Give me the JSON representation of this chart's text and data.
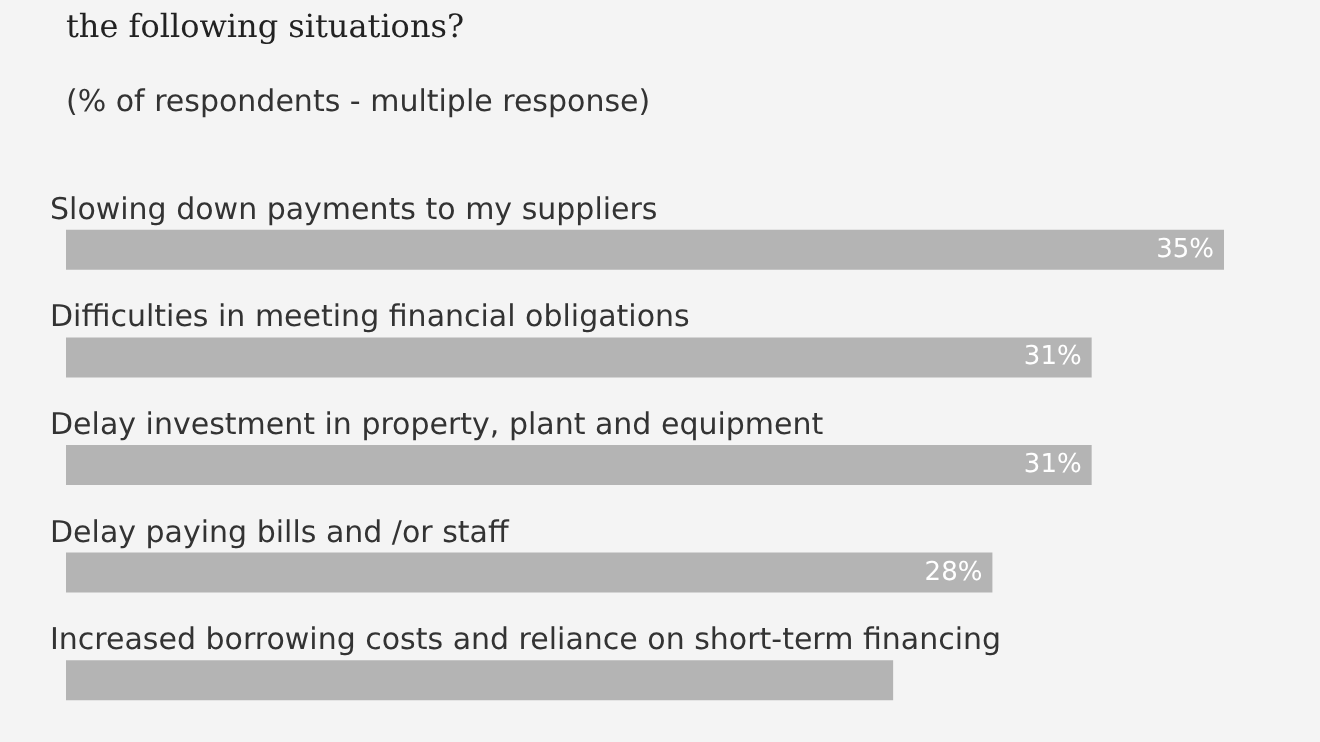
{
  "chart_data": {
    "type": "bar",
    "orientation": "horizontal",
    "title": "the following situations?",
    "subtitle": "(% of respondents - multiple response)",
    "categories": [
      "Slowing down payments to my suppliers",
      "Difficulties in meeting financial obligations",
      "Delay investment in property, plant and equipment",
      "Delay paying bills and /or staff",
      "Increased borrowing costs and reliance on short-term financing"
    ],
    "values": [
      35,
      31,
      31,
      28,
      25
    ],
    "value_labels": [
      "35%",
      "31%",
      "31%",
      "28%",
      null
    ],
    "color": "#b4b4b4"
  }
}
